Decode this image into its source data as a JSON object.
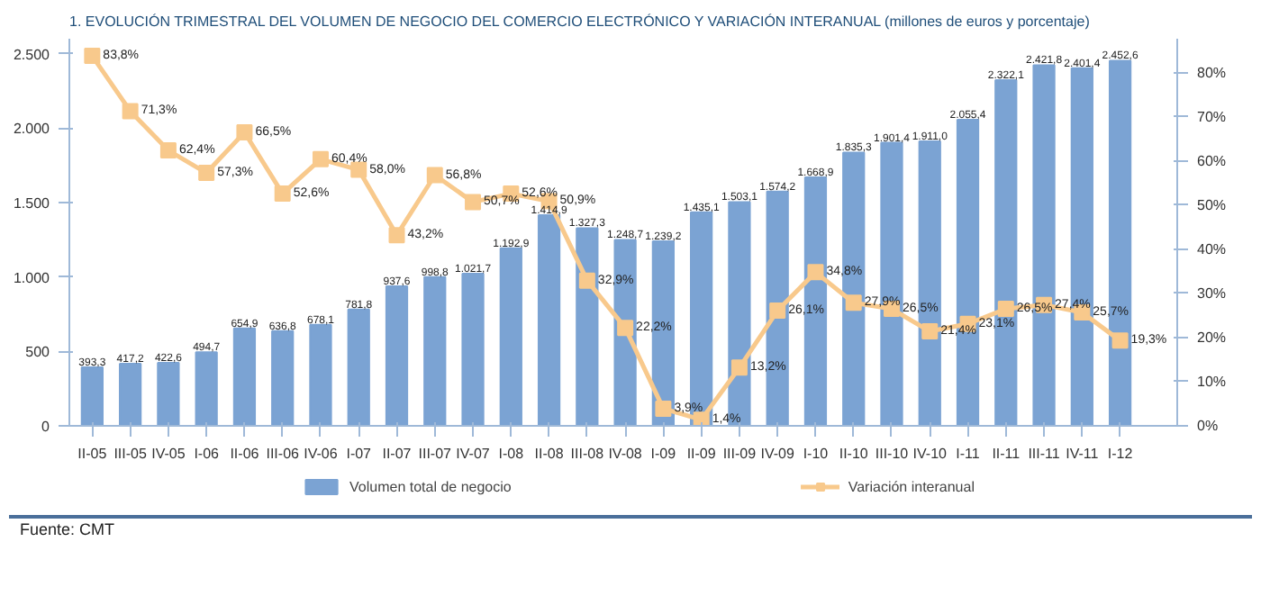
{
  "chart_data": {
    "type": "bar",
    "title": "1.  EVOLUCIÓN TRIMESTRAL DEL VOLUMEN DE NEGOCIO DEL COMERCIO ELECTRÓNICO Y VARIACIÓN INTERANUAL (millones de euros y porcentaje)",
    "annotations": [
      "Fuente: CMT"
    ],
    "categories": [
      "II-05",
      "III-05",
      "IV-05",
      "I-06",
      "II-06",
      "III-06",
      "IV-06",
      "I-07",
      "II-07",
      "III-07",
      "IV-07",
      "I-08",
      "II-08",
      "III-08",
      "IV-08",
      "I-09",
      "II-09",
      "III-09",
      "IV-09",
      "I-10",
      "II-10",
      "III-10",
      "IV-10",
      "I-11",
      "II-11",
      "III-11",
      "IV-11",
      "I-12"
    ],
    "series": [
      {
        "name": "Volumen total de negocio",
        "color": "#7ba3d3",
        "values": [
          393.3,
          417.2,
          422.6,
          494.7,
          654.9,
          636.8,
          678.1,
          781.8,
          937.6,
          998.8,
          1021.7,
          1192.9,
          1414.9,
          1327.3,
          1248.7,
          1239.2,
          1435.1,
          1503.1,
          1574.2,
          1668.9,
          1835.3,
          1901.4,
          1911.0,
          2055.4,
          2322.1,
          2421.8,
          2401.4,
          2452.6
        ],
        "value_labels": [
          "393,3",
          "417,2",
          "422,6",
          "494,7",
          "654,9",
          "636,8",
          "678,1",
          "781,8",
          "937,6",
          "998,8",
          "1.021,7",
          "1.192,9",
          "1.414,9",
          "1.327,3",
          "1.248,7",
          "1.239,2",
          "1.435,1",
          "1.503,1",
          "1.574,2",
          "1.668,9",
          "1.835,3",
          "1.901,4",
          "1.911,0",
          "2.055,4",
          "2.322,1",
          "2.421,8",
          "2.401,4",
          "2.452,6"
        ]
      },
      {
        "name": "Variación interanual",
        "type": "line",
        "axis": "y2",
        "color": "#f8c98c",
        "marker": "square",
        "values": [
          83.8,
          71.3,
          62.4,
          57.3,
          66.5,
          52.6,
          60.4,
          58.0,
          43.2,
          56.8,
          50.7,
          52.6,
          50.9,
          32.9,
          22.2,
          3.9,
          1.4,
          13.2,
          26.1,
          34.8,
          27.9,
          26.5,
          21.4,
          23.1,
          26.5,
          27.4,
          25.7,
          19.3
        ],
        "value_labels": [
          "83,8%",
          "71,3%",
          "62,4%",
          "57,3%",
          "66,5%",
          "52,6%",
          "60,4%",
          "58,0%",
          "43,2%",
          "56,8%",
          "50,7%",
          "52,6%",
          "50,9%",
          "32,9%",
          "22,2%",
          "3,9%",
          "1,4%",
          "13,2%",
          "26,1%",
          "34,8%",
          "27,9%",
          "26,5%",
          "21,4%",
          "23,1%",
          "26,5%",
          "27,4%",
          "25,7%",
          "19,3%"
        ]
      }
    ],
    "ylim": [
      0,
      2600
    ],
    "yticks": [
      0,
      500,
      {
        "value": 1000,
        "label": "1.000"
      },
      {
        "value": 1500,
        "label": "1.500"
      },
      {
        "value": 2000,
        "label": "2.000"
      },
      {
        "value": 2500,
        "label": "2.500"
      }
    ],
    "y2lim": [
      0,
      87.7
    ],
    "y2ticks": [
      {
        "value": 0,
        "label": "0%"
      },
      {
        "value": 10,
        "label": "10%"
      },
      {
        "value": 20,
        "label": "20%"
      },
      {
        "value": 30,
        "label": "30%"
      },
      {
        "value": 40,
        "label": "40%"
      },
      {
        "value": 50,
        "label": "50%"
      },
      {
        "value": 60,
        "label": "60%"
      },
      {
        "value": 70,
        "label": "70%"
      },
      {
        "value": 80,
        "label": "80%"
      }
    ],
    "grid": false,
    "legend": "bottom"
  }
}
